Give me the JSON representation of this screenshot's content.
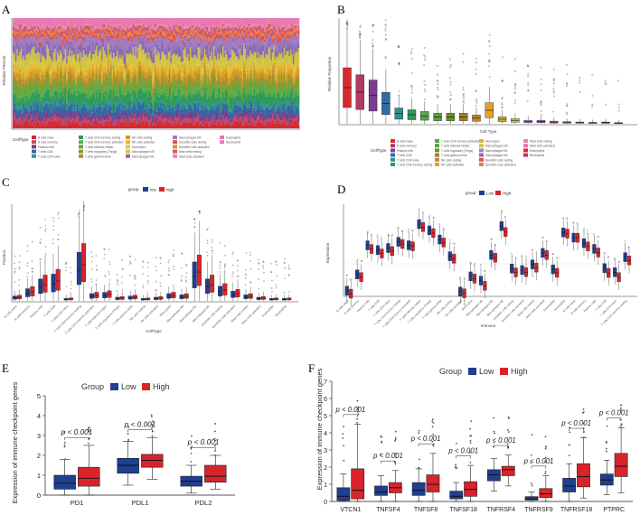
{
  "panel_labels": [
    "A",
    "B",
    "C",
    "D",
    "E",
    "F"
  ],
  "colors": {
    "low": "#1f3f8f",
    "high": "#d9232b",
    "cell_palette": [
      "#d62a30",
      "#b03a62",
      "#7a3e8e",
      "#2d6da3",
      "#2f8f8f",
      "#2e9a5b",
      "#55a848",
      "#58a23f",
      "#6f8f2c",
      "#9d7f2a",
      "#c08a2b",
      "#e3a127",
      "#d1b53a",
      "#c7c946",
      "#b07ac0",
      "#8f6bb2",
      "#e34f3e",
      "#ee7a4a",
      "#e58aa8",
      "#f06fb0"
    ]
  },
  "panel_a": {
    "ylabel": "Relative Percent",
    "legend_title": "CellType",
    "celltypes": [
      "B cells naive",
      "B cells memory",
      "Plasma cells",
      "T cells CD8",
      "T cells CD4 naive",
      "T cells CD4 memory resting",
      "T cells CD4 memory activated",
      "T cells follicular helper",
      "T cells regulatory (Tregs)",
      "T cells gamma delta",
      "NK cells resting",
      "NK cells activated",
      "Monocytes",
      "Macrophages M0",
      "Macrophages M1",
      "Macrophages M2",
      "Dendritic cells resting",
      "Dendritic cells activated",
      "Mast cells resting",
      "Mast cells activated",
      "Eosinophils",
      "Neutrophils"
    ]
  },
  "panel_b": {
    "ylabel": "Relative Proportion",
    "xlabel": "Cell Type",
    "legend_title": "CellType"
  },
  "panel_c": {
    "legend_title": "group",
    "legend_low": "low",
    "legend_high": "high",
    "ylabel": "Fraction",
    "xlabel": "CellType"
  },
  "panel_d": {
    "legend_title": "group",
    "legend_low": "Low",
    "legend_high": "High",
    "ylabel": "Expression",
    "xlabel": "Immune"
  },
  "chart_data": [
    {
      "id": "E",
      "type": "box",
      "legend_title": "Group",
      "series_names": [
        "Low",
        "High"
      ],
      "categories": [
        "PD1",
        "PDL1",
        "PDL2"
      ],
      "ylabel": "Expression of immune checkpoint genes",
      "ylim": [
        0,
        5
      ],
      "yticks": [
        0,
        1,
        2,
        3,
        4,
        5
      ],
      "pvalues": [
        "p < 0.001",
        "p < 0.001",
        "p < 0.001"
      ],
      "boxes": {
        "Low": [
          [
            0.0,
            0.3,
            0.6,
            1.0,
            1.8
          ],
          [
            0.5,
            1.1,
            1.5,
            1.85,
            2.7
          ],
          [
            0.1,
            0.45,
            0.7,
            0.95,
            1.5
          ]
        ],
        "High": [
          [
            0.0,
            0.45,
            0.85,
            1.4,
            2.5
          ],
          [
            0.8,
            1.4,
            1.75,
            2.05,
            2.9
          ],
          [
            0.3,
            0.65,
            0.95,
            1.5,
            2.0
          ]
        ]
      }
    },
    {
      "id": "F",
      "type": "box",
      "legend_title": "Group",
      "series_names": [
        "Low",
        "High"
      ],
      "categories": [
        "VTCN1",
        "TNFSF4",
        "TNFSF8",
        "TNFSF18",
        "TNFRSF4",
        "TNFRSF9",
        "TNFRSF18",
        "PTPRC"
      ],
      "ylabel": "Expression of immune checkpoint genes",
      "ylim": [
        0,
        7
      ],
      "yticks": [
        0,
        1,
        2,
        3,
        4,
        5,
        6,
        7
      ],
      "pvalues": [
        "p < 0.001",
        "p < 0.001",
        "p < 0.001",
        "p < 0.001",
        "p < 0.001",
        "p < 0.001",
        "p < 0.001",
        "p < 0.001"
      ],
      "boxes": {
        "Low": [
          [
            0.0,
            0.05,
            0.3,
            0.8,
            1.6
          ],
          [
            0.0,
            0.35,
            0.55,
            0.9,
            1.5
          ],
          [
            0.0,
            0.35,
            0.65,
            1.1,
            1.9
          ],
          [
            0.0,
            0.15,
            0.3,
            0.6,
            1.1
          ],
          [
            0.6,
            1.2,
            1.55,
            1.85,
            2.5
          ],
          [
            0.0,
            0.08,
            0.15,
            0.28,
            0.55
          ],
          [
            0.0,
            0.55,
            0.9,
            1.35,
            2.2
          ],
          [
            0.4,
            0.95,
            1.25,
            1.6,
            2.4
          ]
        ],
        "High": [
          [
            0.0,
            0.15,
            0.65,
            1.9,
            4.5
          ],
          [
            0.0,
            0.5,
            0.8,
            1.1,
            1.8
          ],
          [
            0.0,
            0.55,
            1.0,
            1.55,
            2.8
          ],
          [
            0.0,
            0.3,
            0.7,
            1.15,
            2.1
          ],
          [
            0.9,
            1.5,
            1.85,
            2.05,
            2.7
          ],
          [
            0.0,
            0.22,
            0.45,
            0.75,
            1.5
          ],
          [
            0.2,
            0.85,
            1.45,
            2.2,
            3.7
          ],
          [
            0.5,
            1.45,
            2.05,
            2.8,
            4.3
          ]
        ]
      }
    }
  ]
}
